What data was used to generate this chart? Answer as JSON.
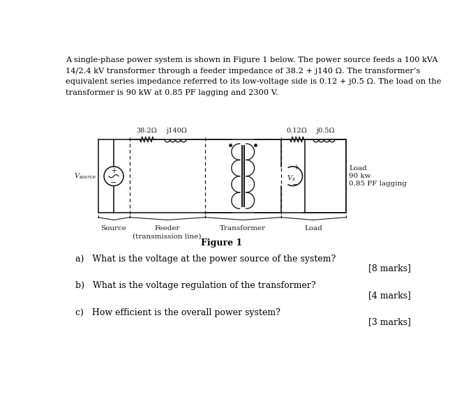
{
  "figure_label": "Figure 1",
  "feeder_R": "38.2Ω",
  "feeder_X": "j140Ω",
  "transformer_R": "0.12Ω",
  "transformer_X": "j0.5Ω",
  "load_label1": "Load",
  "load_label2": "90 kw",
  "load_label3": "0.85 PF lagging",
  "section_source": "Source",
  "section_feeder": "Feeder\n(transmission line)",
  "section_transformer": "Transformer",
  "section_load": "Load",
  "qa": "a)   What is the voltage at the power source of the system?",
  "qb": "b)   What is the voltage regulation of the transformer?",
  "qc": "c)   How efficient is the overall power system?",
  "marks_a": "[8 marks]",
  "marks_b": "[4 marks]",
  "marks_c": "[3 marks]",
  "title_lines": [
    "A single-phase power system is shown in Figure 1 below. The power source feeds a 100 kVA",
    "14/2.4 kV transformer through a feeder impedance of 38.2 + j140 Ω. The transformer’s",
    "equivalent series impedance referred to its low-voltage side is 0.12 + j0.5 Ω. The load on the",
    "transformer is 90 kW at 0.85 PF lagging and 2300 V."
  ],
  "bg_color": "#ffffff",
  "text_color": "#000000",
  "circuit_color": "#1a1a1a"
}
